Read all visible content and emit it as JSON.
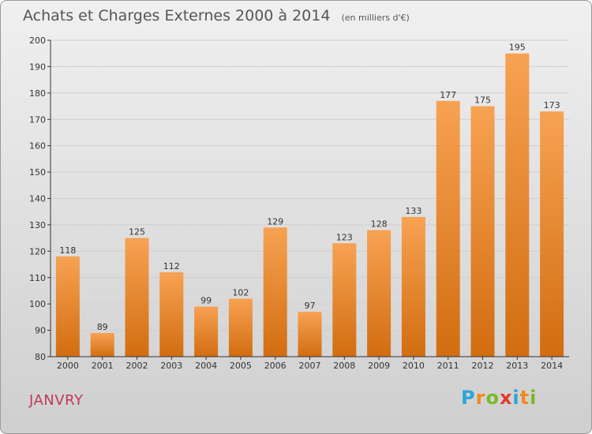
{
  "header": {
    "title": "Achats et Charges Externes 2000 à 2014",
    "subtitle": "(en milliers d'€)"
  },
  "footer": {
    "commune": "JANVRY",
    "brand_letters": [
      "P",
      "r",
      "o",
      "x",
      "i",
      "t",
      "i"
    ]
  },
  "colors": {
    "bar_light": "#f7a253",
    "bar_dark": "#d26d10",
    "axis": "#333333",
    "grid": "#cfcfcf",
    "commune": "#c0395a"
  },
  "chart_data": {
    "type": "bar",
    "title": "Achats et Charges Externes 2000 à 2014",
    "subtitle": "(en milliers d'€)",
    "categories": [
      "2000",
      "2001",
      "2002",
      "2003",
      "2004",
      "2005",
      "2006",
      "2007",
      "2008",
      "2009",
      "2010",
      "2011",
      "2012",
      "2013",
      "2014"
    ],
    "values": [
      118,
      89,
      125,
      112,
      99,
      102,
      129,
      97,
      123,
      128,
      133,
      177,
      175,
      195,
      173
    ],
    "ylim": [
      80,
      200
    ],
    "yticks": [
      80,
      90,
      100,
      110,
      120,
      130,
      140,
      150,
      160,
      170,
      180,
      190,
      200
    ],
    "grid": true,
    "data_labels": true
  }
}
